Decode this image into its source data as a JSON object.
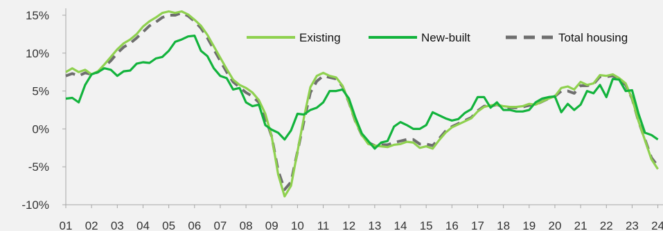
{
  "chart_data": {
    "type": "line",
    "title": "",
    "xlabel": "",
    "ylabel": "",
    "ylim": [
      -10,
      15
    ],
    "yticks": [
      -10,
      -5,
      0,
      5,
      10,
      15
    ],
    "ytick_labels": [
      "-10%",
      "-5%",
      "0%",
      "5%",
      "10%",
      "15%"
    ],
    "xlim": [
      2001,
      2024.2
    ],
    "xticks": [
      2001,
      2002,
      2003,
      2004,
      2005,
      2006,
      2007,
      2008,
      2009,
      2010,
      2011,
      2012,
      2013,
      2014,
      2015,
      2016,
      2017,
      2018,
      2019,
      2020,
      2021,
      2022,
      2023,
      2024
    ],
    "xtick_labels": [
      "01",
      "02",
      "03",
      "04",
      "05",
      "06",
      "07",
      "08",
      "09",
      "10",
      "11",
      "12",
      "13",
      "14",
      "15",
      "16",
      "17",
      "18",
      "19",
      "20",
      "21",
      "22",
      "23",
      "24"
    ],
    "grid": false,
    "legend_position": "top-right",
    "series": [
      {
        "name": "Existing",
        "color": "#8fd14f",
        "dash": "solid",
        "x": [
          2001.0,
          2001.25,
          2001.5,
          2001.75,
          2002.0,
          2002.25,
          2002.5,
          2002.75,
          2003.0,
          2003.25,
          2003.5,
          2003.75,
          2004.0,
          2004.25,
          2004.5,
          2004.75,
          2005.0,
          2005.25,
          2005.5,
          2005.75,
          2006.0,
          2006.25,
          2006.5,
          2006.75,
          2007.0,
          2007.25,
          2007.5,
          2007.75,
          2008.0,
          2008.25,
          2008.5,
          2008.75,
          2009.0,
          2009.25,
          2009.5,
          2009.75,
          2010.0,
          2010.25,
          2010.5,
          2010.75,
          2011.0,
          2011.25,
          2011.5,
          2011.75,
          2012.0,
          2012.25,
          2012.5,
          2012.75,
          2013.0,
          2013.25,
          2013.5,
          2013.75,
          2014.0,
          2014.25,
          2014.5,
          2014.75,
          2015.0,
          2015.25,
          2015.5,
          2015.75,
          2016.0,
          2016.25,
          2016.5,
          2016.75,
          2017.0,
          2017.25,
          2017.5,
          2017.75,
          2018.0,
          2018.25,
          2018.5,
          2018.75,
          2019.0,
          2019.25,
          2019.5,
          2019.75,
          2020.0,
          2020.25,
          2020.5,
          2020.75,
          2021.0,
          2021.25,
          2021.5,
          2021.75,
          2022.0,
          2022.25,
          2022.5,
          2022.75,
          2023.0,
          2023.25,
          2023.5,
          2023.75,
          2024.0
        ],
        "y": [
          7.5,
          8.0,
          7.5,
          7.8,
          7.2,
          7.6,
          8.5,
          9.5,
          10.5,
          11.3,
          11.8,
          12.5,
          13.5,
          14.2,
          14.7,
          15.3,
          15.5,
          15.3,
          15.5,
          15.1,
          14.4,
          13.6,
          12.4,
          10.9,
          9.4,
          7.9,
          6.5,
          5.8,
          5.4,
          4.8,
          3.8,
          2.0,
          -1.0,
          -6.0,
          -8.9,
          -7.5,
          -3.0,
          1.5,
          5.5,
          7.0,
          7.4,
          7.0,
          6.8,
          5.7,
          3.5,
          1.0,
          -0.8,
          -2.0,
          -2.2,
          -2.3,
          -2.4,
          -2.1,
          -2.0,
          -1.7,
          -1.8,
          -2.5,
          -2.3,
          -2.6,
          -1.5,
          -0.5,
          0.2,
          0.6,
          1.0,
          1.4,
          2.3,
          2.9,
          3.1,
          3.2,
          3.0,
          2.9,
          2.9,
          3.0,
          3.3,
          3.2,
          3.6,
          4.0,
          4.3,
          5.4,
          5.6,
          5.2,
          6.2,
          5.8,
          6.0,
          7.1,
          7.0,
          7.2,
          6.7,
          6.0,
          4.0,
          1.0,
          -1.5,
          -4.0,
          -5.3
        ]
      },
      {
        "name": "New-built",
        "color": "#12b33c",
        "dash": "solid",
        "x": [
          2001.0,
          2001.25,
          2001.5,
          2001.75,
          2002.0,
          2002.25,
          2002.5,
          2002.75,
          2003.0,
          2003.25,
          2003.5,
          2003.75,
          2004.0,
          2004.25,
          2004.5,
          2004.75,
          2005.0,
          2005.25,
          2005.5,
          2005.75,
          2006.0,
          2006.25,
          2006.5,
          2006.75,
          2007.0,
          2007.25,
          2007.5,
          2007.75,
          2008.0,
          2008.25,
          2008.5,
          2008.75,
          2009.0,
          2009.25,
          2009.5,
          2009.75,
          2010.0,
          2010.25,
          2010.5,
          2010.75,
          2011.0,
          2011.25,
          2011.5,
          2011.75,
          2012.0,
          2012.25,
          2012.5,
          2012.75,
          2013.0,
          2013.25,
          2013.5,
          2013.75,
          2014.0,
          2014.25,
          2014.5,
          2014.75,
          2015.0,
          2015.25,
          2015.5,
          2015.75,
          2016.0,
          2016.25,
          2016.5,
          2016.75,
          2017.0,
          2017.25,
          2017.5,
          2017.75,
          2018.0,
          2018.25,
          2018.5,
          2018.75,
          2019.0,
          2019.25,
          2019.5,
          2019.75,
          2020.0,
          2020.25,
          2020.5,
          2020.75,
          2021.0,
          2021.25,
          2021.5,
          2021.75,
          2022.0,
          2022.25,
          2022.5,
          2022.75,
          2023.0,
          2023.25,
          2023.5,
          2023.75,
          2024.0
        ],
        "y": [
          4.0,
          4.1,
          3.5,
          5.8,
          7.2,
          7.5,
          8.0,
          7.8,
          7.0,
          7.6,
          7.7,
          8.6,
          8.8,
          8.7,
          9.3,
          9.5,
          10.3,
          11.5,
          11.8,
          12.2,
          12.3,
          10.3,
          9.6,
          8.0,
          7.0,
          6.7,
          5.2,
          5.4,
          3.5,
          3.0,
          3.2,
          0.5,
          -0.1,
          -0.5,
          -1.4,
          -0.2,
          2.0,
          1.9,
          2.5,
          2.8,
          3.5,
          5.0,
          5.0,
          5.2,
          4.0,
          1.5,
          -0.6,
          -1.6,
          -2.6,
          -1.8,
          -1.6,
          0.3,
          0.9,
          0.5,
          0.0,
          0.0,
          0.5,
          2.2,
          1.8,
          1.4,
          1.1,
          1.3,
          2.1,
          2.6,
          4.2,
          4.2,
          2.8,
          3.5,
          2.5,
          2.5,
          2.3,
          2.3,
          2.5,
          3.5,
          4.0,
          4.2,
          4.3,
          2.2,
          3.3,
          2.5,
          3.2,
          5.0,
          4.7,
          5.8,
          4.2,
          6.6,
          6.5,
          5.0,
          5.1,
          2.0,
          -0.5,
          -0.8,
          -1.4
        ]
      },
      {
        "name": "Total housing",
        "color": "#6e6e6e",
        "dash": "dashed",
        "x": [
          2001.0,
          2001.25,
          2001.5,
          2001.75,
          2002.0,
          2002.25,
          2002.5,
          2002.75,
          2003.0,
          2003.25,
          2003.5,
          2003.75,
          2004.0,
          2004.25,
          2004.5,
          2004.75,
          2005.0,
          2005.25,
          2005.5,
          2005.75,
          2006.0,
          2006.25,
          2006.5,
          2006.75,
          2007.0,
          2007.25,
          2007.5,
          2007.75,
          2008.0,
          2008.25,
          2008.5,
          2008.75,
          2009.0,
          2009.25,
          2009.5,
          2009.75,
          2010.0,
          2010.25,
          2010.5,
          2010.75,
          2011.0,
          2011.25,
          2011.5,
          2011.75,
          2012.0,
          2012.25,
          2012.5,
          2012.75,
          2013.0,
          2013.25,
          2013.5,
          2013.75,
          2014.0,
          2014.25,
          2014.5,
          2014.75,
          2015.0,
          2015.25,
          2015.5,
          2015.75,
          2016.0,
          2016.25,
          2016.5,
          2016.75,
          2017.0,
          2017.25,
          2017.5,
          2017.75,
          2018.0,
          2018.25,
          2018.5,
          2018.75,
          2019.0,
          2019.25,
          2019.5,
          2019.75,
          2020.0,
          2020.25,
          2020.5,
          2020.75,
          2021.0,
          2021.25,
          2021.5,
          2021.75,
          2022.0,
          2022.25,
          2022.5,
          2022.75,
          2023.0,
          2023.25,
          2023.5,
          2023.75,
          2024.0
        ],
        "y": [
          7.0,
          7.3,
          7.0,
          7.4,
          7.2,
          7.5,
          8.2,
          9.0,
          10.0,
          10.8,
          11.3,
          12.0,
          12.8,
          13.6,
          14.1,
          14.7,
          15.0,
          15.0,
          15.3,
          14.9,
          14.2,
          13.3,
          12.0,
          10.5,
          9.0,
          7.5,
          6.2,
          5.5,
          4.8,
          4.3,
          3.5,
          1.5,
          -1.0,
          -5.5,
          -8.0,
          -7.0,
          -3.0,
          1.0,
          4.8,
          6.3,
          7.0,
          6.8,
          6.6,
          5.6,
          3.5,
          1.0,
          -0.8,
          -1.8,
          -2.2,
          -2.1,
          -2.1,
          -1.8,
          -1.6,
          -1.4,
          -1.4,
          -2.0,
          -2.0,
          -2.2,
          -1.3,
          -0.3,
          0.3,
          0.7,
          1.1,
          1.5,
          2.4,
          3.0,
          3.0,
          3.2,
          2.9,
          2.8,
          2.8,
          2.9,
          3.1,
          3.2,
          3.6,
          4.0,
          4.3,
          5.0,
          5.0,
          4.7,
          5.7,
          5.7,
          5.9,
          6.9,
          6.9,
          7.0,
          6.5,
          5.8,
          4.0,
          1.0,
          -1.4,
          -3.8,
          -4.9
        ]
      }
    ]
  }
}
